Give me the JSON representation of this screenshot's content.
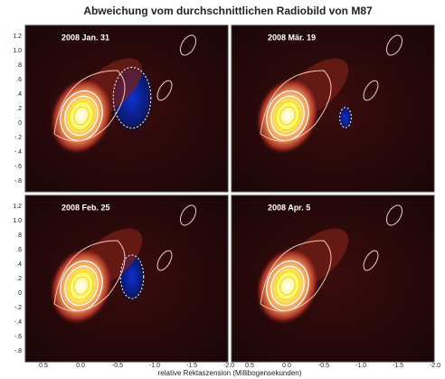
{
  "title": "Abweichung vom durchschnittlichen Radiobild von M87",
  "panels": [
    {
      "label": "2008 Jan. 31"
    },
    {
      "label": "2008 Mär. 19"
    },
    {
      "label": "2008 Feb. 25"
    },
    {
      "label": "2008 Apr. 5"
    }
  ],
  "y_tick_labels": [
    "1.2",
    "1.0",
    ".8",
    ".6",
    ".4",
    ".2",
    "0",
    "-.2",
    "-.4",
    "-.6",
    "-.8"
  ],
  "x_tick_labels": [
    "0.5",
    "0.0",
    "-0.5",
    "-1.0",
    "-1.5",
    "-2.0"
  ],
  "x_axis_label": "relative Rektaszension (Millibogensekunden)"
}
